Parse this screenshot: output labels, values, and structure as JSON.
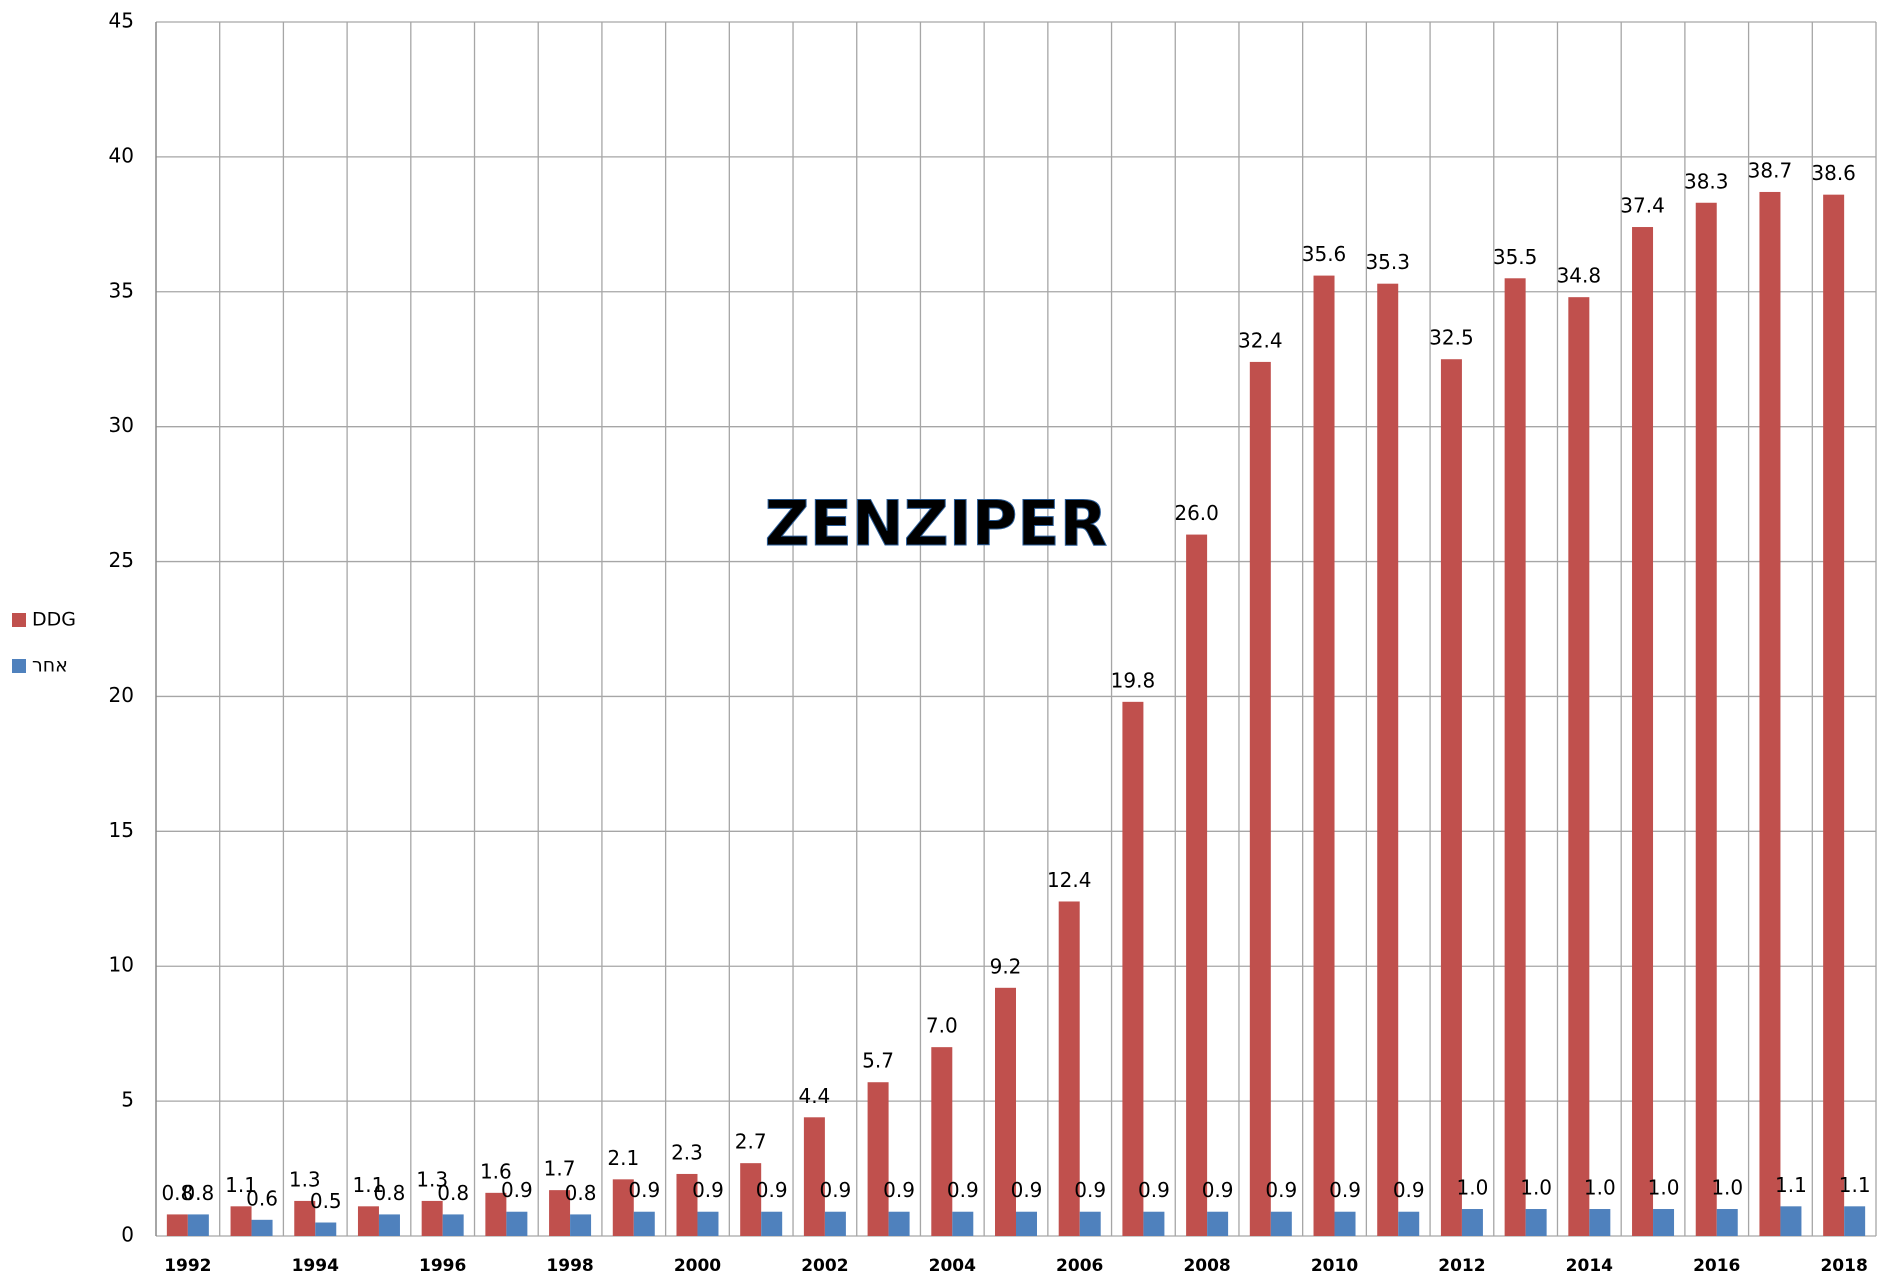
{
  "chart_data": {
    "type": "bar",
    "watermark": "ZENZIPER",
    "categories": [
      "1992",
      null,
      "1994",
      null,
      "1996",
      null,
      "1998",
      null,
      "2000",
      null,
      "2002",
      null,
      "2004",
      null,
      "2006",
      null,
      "2008",
      null,
      "2010",
      null,
      "2012",
      null,
      "2014",
      null,
      "2016",
      null,
      "2018"
    ],
    "series": [
      {
        "name": "DDG",
        "color": "#c0504d",
        "values": [
          0.8,
          1.1,
          1.3,
          1.1,
          1.3,
          1.6,
          1.7,
          2.1,
          2.3,
          2.7,
          4.4,
          5.7,
          7.0,
          9.2,
          12.4,
          19.8,
          26.0,
          32.4,
          35.6,
          35.3,
          32.5,
          35.5,
          34.8,
          37.4,
          38.3,
          38.7,
          38.6
        ],
        "value_labels": [
          "0.8",
          "1.1",
          "1.3",
          "1.1",
          "1.3",
          "1.6",
          "1.7",
          "2.1",
          "2.3",
          "2.7",
          "4.4",
          "5.7",
          "7.0",
          "9.2",
          "12.4",
          "19.8",
          "26.0",
          "32.4",
          "35.6",
          "35.3",
          "32.5",
          "35.5",
          "34.8",
          "37.4",
          "38.3",
          "38.7",
          "38.6"
        ]
      },
      {
        "name": "אחר",
        "color": "#4f81bd",
        "values": [
          0.8,
          0.6,
          0.5,
          0.8,
          0.8,
          0.9,
          0.8,
          0.9,
          0.9,
          0.9,
          0.9,
          0.9,
          0.9,
          0.9,
          0.9,
          0.9,
          0.9,
          0.9,
          0.9,
          0.9,
          1.0,
          1.0,
          1.0,
          1.0,
          1.0,
          1.1,
          1.1
        ],
        "value_labels": [
          "0.8",
          "0.6",
          "0.5",
          "0.8",
          "0.8",
          "0.9",
          "0.8",
          "0.9",
          "0.9",
          "0.9",
          "0.9",
          "0.9",
          "0.9",
          "0.9",
          "0.9",
          "0.9",
          "0.9",
          "0.9",
          "0.9",
          "0.9",
          "1.0",
          "1.0",
          "1.0",
          "1.0",
          "1.0",
          "1.1",
          "1.1"
        ]
      }
    ],
    "ylim": [
      0,
      45
    ],
    "yticks": [
      0,
      5,
      10,
      15,
      20,
      25,
      30,
      35,
      40,
      45
    ],
    "grid": true,
    "legend": "left"
  }
}
